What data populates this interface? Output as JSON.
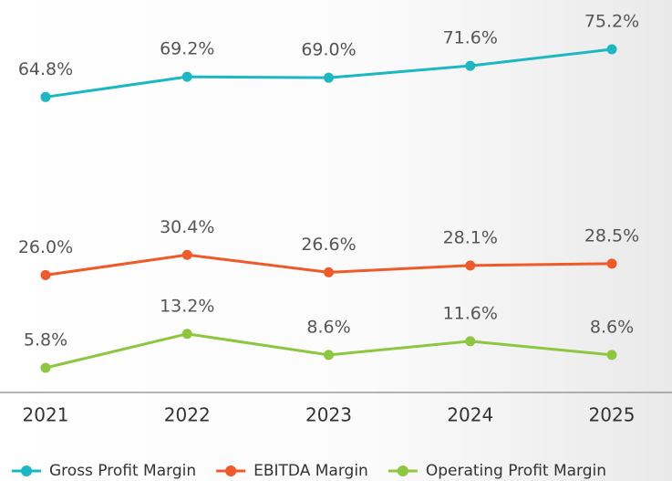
{
  "chart_data": {
    "type": "line",
    "categories": [
      "2021",
      "2022",
      "2023",
      "2024",
      "2025"
    ],
    "series": [
      {
        "name": "Gross Profit Margin",
        "color": "#1bb8c4",
        "values": [
          64.8,
          69.2,
          69.0,
          71.6,
          75.2
        ],
        "value_labels": [
          "64.8%",
          "69.2%",
          "69.0%",
          "71.6%",
          "75.2%"
        ]
      },
      {
        "name": "EBITDA Margin",
        "color": "#f05a28",
        "values": [
          26.0,
          30.4,
          26.6,
          28.1,
          28.5
        ],
        "value_labels": [
          "26.0%",
          "30.4%",
          "26.6%",
          "28.1%",
          "28.5%"
        ]
      },
      {
        "name": "Operating Profit Margin",
        "color": "#8dc63f",
        "values": [
          5.8,
          13.2,
          8.6,
          11.6,
          8.6
        ],
        "value_labels": [
          "5.8%",
          "13.2%",
          "8.6%",
          "11.6%",
          "8.6%"
        ]
      }
    ],
    "legend": "bottom"
  }
}
